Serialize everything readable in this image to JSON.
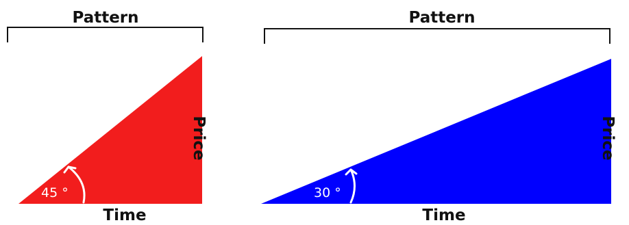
{
  "diagrams": [
    {
      "pattern_label": "Pattern",
      "x_label": "Time",
      "y_label": "Price",
      "angle_label": "45 °",
      "fill_color": "#f21d1d"
    },
    {
      "pattern_label": "Pattern",
      "x_label": "Time",
      "y_label": "Price",
      "angle_label": "30 °",
      "fill_color": "#0000ff"
    }
  ]
}
